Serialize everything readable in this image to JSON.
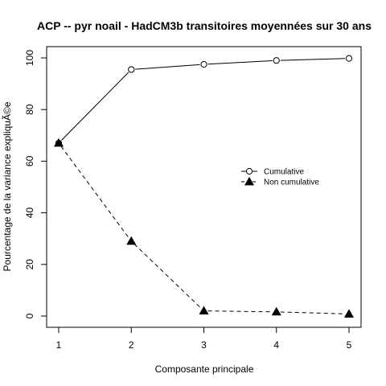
{
  "chart_data": {
    "type": "line",
    "title": "ACP -- pyr noail - HadCM3b transitoires moyennées sur 30 ans",
    "xlabel": "Composante principale",
    "ylabel": "Pourcentage de la variance expliquÃ©e",
    "x": [
      1,
      2,
      3,
      4,
      5
    ],
    "xlim": [
      1,
      5
    ],
    "ylim": [
      0,
      100
    ],
    "x_ticks": [
      1,
      2,
      3,
      4,
      5
    ],
    "y_ticks": [
      0,
      20,
      40,
      60,
      80,
      100
    ],
    "grid": false,
    "legend_position": "right",
    "series": [
      {
        "name": "Cumulative",
        "values": [
          67,
          95.5,
          97.5,
          99,
          99.8
        ],
        "line_style": "solid",
        "marker": "open-circle",
        "color": "#000000"
      },
      {
        "name": "Non cumulative",
        "values": [
          67,
          29,
          2,
          1.6,
          0.8
        ],
        "line_style": "dashed",
        "marker": "filled-triangle",
        "color": "#000000"
      }
    ]
  }
}
